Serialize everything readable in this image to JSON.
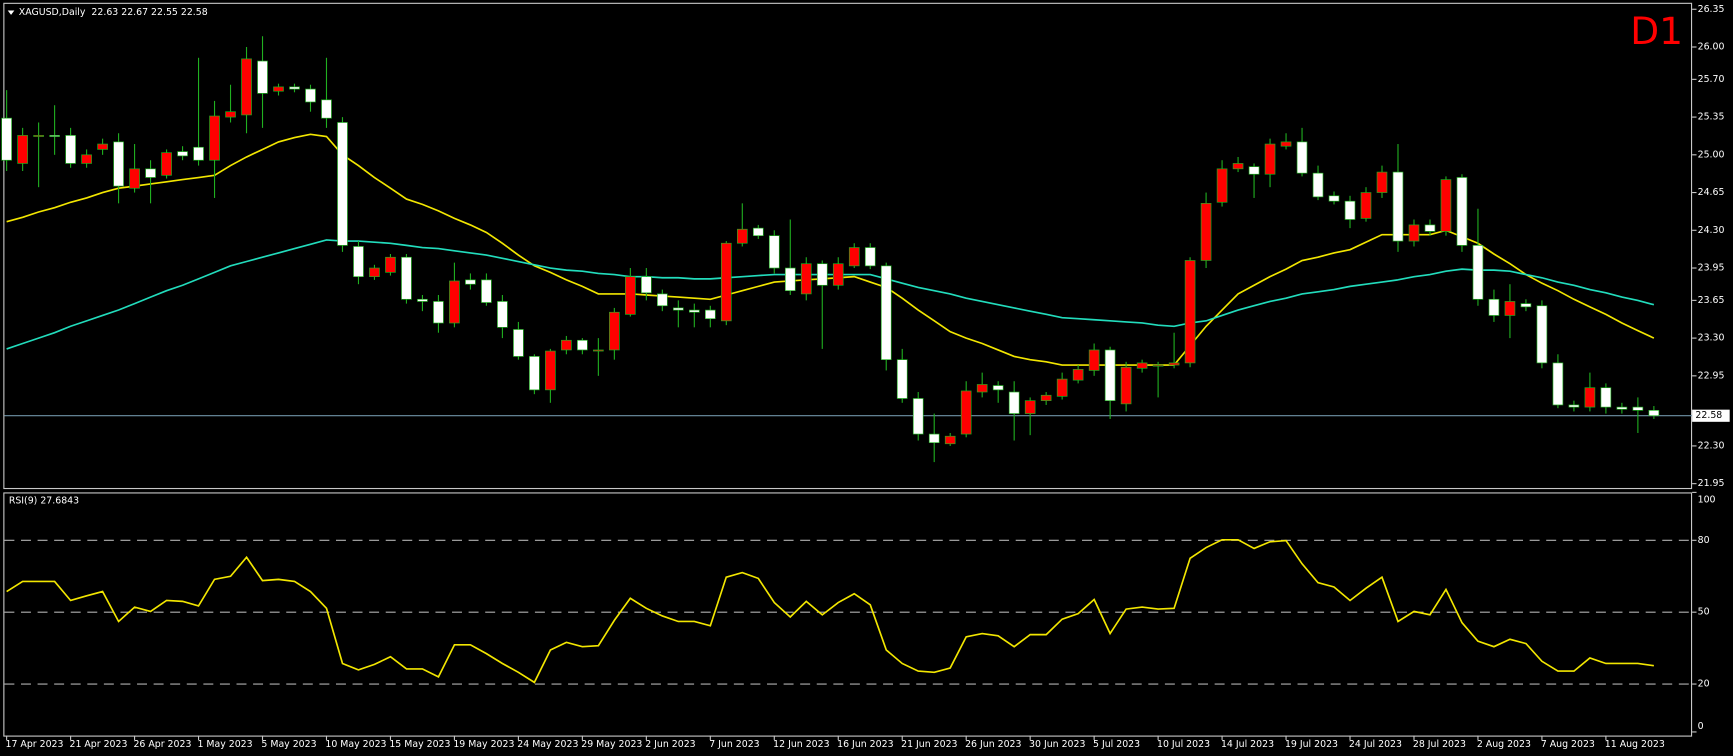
{
  "chart_data": [
    {
      "type": "candlestick",
      "title": "XAGUSD,Daily  22.63 22.67 22.55 22.58",
      "annotation": "D1",
      "up_color": "#ff0000",
      "down_color": "#ffffff",
      "wick_color": "#20b020",
      "ylim": [
        21.91,
        26.4
      ],
      "yticks": [
        {
          "value": 21.95,
          "label": "21.95"
        },
        {
          "value": 22.3,
          "label": "22.30"
        },
        22.95,
        {
          "value": 23.3,
          "label": "23.30"
        },
        23.65,
        23.95,
        {
          "value": 24.3,
          "label": "24.30"
        },
        24.65,
        {
          "value": 25.0,
          "label": "25.00"
        },
        25.35,
        {
          "value": 25.7,
          "label": "25.70"
        },
        {
          "value": 26.0,
          "label": "26.00"
        },
        26.35
      ],
      "price_line": 22.58,
      "price_line_color": "#6f93a6",
      "categories": [
        "17 Apr 2023",
        null,
        null,
        null,
        "21 Apr 2023",
        null,
        null,
        null,
        "26 Apr 2023",
        null,
        null,
        null,
        "1 May 2023",
        null,
        null,
        null,
        "5 May 2023",
        null,
        null,
        null,
        "10 May 2023",
        null,
        null,
        null,
        "15 May 2023",
        null,
        null,
        null,
        "19 May 2023",
        null,
        null,
        null,
        "24 May 2023",
        null,
        null,
        null,
        "29 May 2023",
        null,
        null,
        null,
        "2 Jun 2023",
        null,
        null,
        null,
        "7 Jun 2023",
        null,
        null,
        null,
        "12 Jun 2023",
        null,
        null,
        null,
        "16 Jun 2023",
        null,
        null,
        null,
        "21 Jun 2023",
        null,
        null,
        null,
        "26 Jun 2023",
        null,
        null,
        null,
        "30 Jun 2023",
        null,
        null,
        null,
        "5 Jul 2023",
        null,
        null,
        null,
        "10 Jul 2023",
        null,
        null,
        null,
        "14 Jul 2023",
        null,
        null,
        null,
        "19 Jul 2023",
        null,
        null,
        null,
        "24 Jul 2023",
        null,
        null,
        null,
        "28 Jul 2023",
        null,
        null,
        null,
        "2 Aug 2023",
        null,
        null,
        null,
        "7 Aug 2023",
        null,
        null,
        null,
        "11 Aug 2023",
        null,
        null,
        null
      ],
      "candles": [
        [
          25.34,
          25.6,
          24.85,
          24.95
        ],
        [
          24.92,
          25.25,
          24.85,
          25.18
        ],
        [
          25.18,
          25.3,
          24.7,
          25.18
        ],
        [
          25.18,
          25.46,
          25.0,
          25.17
        ],
        [
          25.18,
          25.25,
          24.88,
          24.92
        ],
        [
          24.92,
          25.05,
          24.88,
          25.0
        ],
        [
          25.05,
          25.15,
          25.0,
          25.1
        ],
        [
          25.12,
          25.2,
          24.55,
          24.71
        ],
        [
          24.69,
          25.1,
          24.65,
          24.87
        ],
        [
          24.87,
          24.95,
          24.55,
          24.79
        ],
        [
          24.81,
          25.05,
          24.78,
          25.02
        ],
        [
          25.03,
          25.08,
          24.95,
          24.99
        ],
        [
          25.07,
          25.9,
          24.9,
          24.95
        ],
        [
          24.95,
          25.5,
          24.6,
          25.36
        ],
        [
          25.35,
          25.65,
          25.3,
          25.4
        ],
        [
          25.37,
          26.0,
          25.2,
          25.89
        ],
        [
          25.87,
          26.1,
          25.25,
          25.57
        ],
        [
          25.59,
          25.66,
          25.55,
          25.63
        ],
        [
          25.63,
          25.66,
          25.58,
          25.61
        ],
        [
          25.61,
          25.65,
          25.4,
          25.49
        ],
        [
          25.51,
          25.9,
          25.25,
          25.34
        ],
        [
          25.3,
          25.35,
          24.1,
          24.16
        ],
        [
          24.15,
          24.2,
          23.8,
          23.87
        ],
        [
          23.87,
          23.98,
          23.84,
          23.95
        ],
        [
          23.91,
          24.08,
          23.88,
          24.05
        ],
        [
          24.05,
          24.08,
          23.62,
          23.66
        ],
        [
          23.66,
          23.7,
          23.55,
          23.64
        ],
        [
          23.64,
          23.7,
          23.35,
          23.44
        ],
        [
          23.44,
          24.0,
          23.4,
          23.83
        ],
        [
          23.84,
          23.9,
          23.75,
          23.8
        ],
        [
          23.84,
          23.9,
          23.6,
          23.63
        ],
        [
          23.64,
          23.7,
          23.3,
          23.4
        ],
        [
          23.38,
          23.45,
          23.1,
          23.13
        ],
        [
          23.13,
          23.15,
          22.78,
          22.82
        ],
        [
          22.82,
          23.2,
          22.7,
          23.18
        ],
        [
          23.19,
          23.32,
          23.15,
          23.28
        ],
        [
          23.28,
          23.3,
          23.15,
          23.19
        ],
        [
          23.18,
          23.3,
          22.95,
          23.19
        ],
        [
          23.19,
          23.58,
          23.1,
          23.54
        ],
        [
          23.52,
          23.95,
          23.5,
          23.87
        ],
        [
          23.87,
          23.95,
          23.65,
          23.72
        ],
        [
          23.71,
          23.75,
          23.55,
          23.6
        ],
        [
          23.58,
          23.65,
          23.4,
          23.56
        ],
        [
          23.56,
          23.62,
          23.4,
          23.54
        ],
        [
          23.56,
          23.6,
          23.4,
          23.48
        ],
        [
          23.46,
          24.2,
          23.42,
          24.18
        ],
        [
          24.18,
          24.55,
          24.15,
          24.31
        ],
        [
          24.32,
          24.35,
          24.22,
          24.25
        ],
        [
          24.25,
          24.3,
          23.9,
          23.95
        ],
        [
          23.95,
          24.4,
          23.7,
          23.74
        ],
        [
          23.71,
          24.05,
          23.65,
          23.99
        ],
        [
          23.99,
          24.02,
          23.2,
          23.79
        ],
        [
          23.79,
          24.05,
          23.75,
          23.99
        ],
        [
          23.97,
          24.18,
          23.95,
          24.14
        ],
        [
          24.14,
          24.18,
          23.94,
          23.97
        ],
        [
          23.97,
          24.0,
          23.0,
          23.1
        ],
        [
          23.1,
          23.2,
          22.7,
          22.74
        ],
        [
          22.74,
          22.8,
          22.35,
          22.41
        ],
        [
          22.41,
          22.6,
          22.15,
          22.33
        ],
        [
          22.32,
          22.42,
          22.3,
          22.39
        ],
        [
          22.41,
          22.9,
          22.38,
          22.81
        ],
        [
          22.8,
          22.98,
          22.75,
          22.87
        ],
        [
          22.86,
          22.9,
          22.7,
          22.82
        ],
        [
          22.8,
          22.9,
          22.35,
          22.6
        ],
        [
          22.6,
          22.75,
          22.4,
          22.72
        ],
        [
          22.72,
          22.8,
          22.68,
          22.77
        ],
        [
          22.76,
          22.98,
          22.73,
          22.92
        ],
        [
          22.91,
          23.05,
          22.88,
          23.01
        ],
        [
          23.0,
          23.25,
          22.95,
          23.19
        ],
        [
          23.19,
          23.22,
          22.55,
          22.72
        ],
        [
          22.69,
          23.08,
          22.62,
          23.03
        ],
        [
          23.02,
          23.1,
          22.98,
          23.07
        ],
        [
          23.05,
          23.08,
          22.75,
          23.05
        ],
        [
          23.05,
          23.35,
          23.02,
          23.07
        ],
        [
          23.07,
          24.05,
          23.03,
          24.02
        ],
        [
          24.02,
          24.65,
          23.95,
          24.55
        ],
        [
          24.56,
          24.95,
          24.52,
          24.87
        ],
        [
          24.87,
          24.98,
          24.84,
          24.92
        ],
        [
          24.89,
          24.92,
          24.6,
          24.82
        ],
        [
          24.82,
          25.15,
          24.7,
          25.1
        ],
        [
          25.08,
          25.2,
          25.05,
          25.12
        ],
        [
          25.12,
          25.25,
          24.8,
          24.83
        ],
        [
          24.83,
          24.9,
          24.58,
          24.61
        ],
        [
          24.62,
          24.66,
          24.54,
          24.57
        ],
        [
          24.57,
          24.62,
          24.32,
          24.4
        ],
        [
          24.41,
          24.7,
          24.38,
          24.65
        ],
        [
          24.65,
          24.9,
          24.6,
          24.84
        ],
        [
          24.84,
          25.1,
          24.1,
          24.2
        ],
        [
          24.2,
          24.4,
          24.15,
          24.35
        ],
        [
          24.35,
          24.4,
          24.25,
          24.29
        ],
        [
          24.29,
          24.8,
          24.25,
          24.77
        ],
        [
          24.79,
          24.82,
          24.1,
          24.16
        ],
        [
          24.16,
          24.5,
          23.6,
          23.66
        ],
        [
          23.66,
          23.75,
          23.45,
          23.51
        ],
        [
          23.51,
          23.8,
          23.3,
          23.64
        ],
        [
          23.62,
          23.66,
          23.55,
          23.59
        ],
        [
          23.6,
          23.65,
          23.02,
          23.07
        ],
        [
          23.07,
          23.15,
          22.65,
          22.68
        ],
        [
          22.68,
          22.72,
          22.62,
          22.66
        ],
        [
          22.66,
          22.98,
          22.62,
          22.84
        ],
        [
          22.84,
          22.88,
          22.6,
          22.66
        ],
        [
          22.66,
          22.7,
          22.6,
          22.64
        ],
        [
          22.66,
          22.75,
          22.42,
          22.63
        ],
        [
          22.63,
          22.67,
          22.55,
          22.58
        ]
      ],
      "ma": [
        {
          "color": "#f2e600",
          "values": [
            24.38,
            24.42,
            24.47,
            24.51,
            24.56,
            24.6,
            24.65,
            24.69,
            24.71,
            24.73,
            24.75,
            24.77,
            24.79,
            24.81,
            24.9,
            24.98,
            25.05,
            25.12,
            25.16,
            25.19,
            25.17,
            25.0,
            24.9,
            24.79,
            24.69,
            24.59,
            24.54,
            24.48,
            24.41,
            24.35,
            24.28,
            24.18,
            24.07,
            23.97,
            23.91,
            23.84,
            23.78,
            23.71,
            23.71,
            23.71,
            23.7,
            23.69,
            23.68,
            23.67,
            23.66,
            23.7,
            23.74,
            23.78,
            23.82,
            23.83,
            23.84,
            23.85,
            23.86,
            23.87,
            23.82,
            23.77,
            23.67,
            23.56,
            23.46,
            23.36,
            23.3,
            23.25,
            23.19,
            23.13,
            23.1,
            23.08,
            23.05,
            23.05,
            23.05,
            23.05,
            23.05,
            23.05,
            23.05,
            23.05,
            23.23,
            23.41,
            23.56,
            23.71,
            23.79,
            23.87,
            23.94,
            24.02,
            24.05,
            24.09,
            24.12,
            24.19,
            24.26,
            24.26,
            24.26,
            24.26,
            24.3,
            24.24,
            24.18,
            24.08,
            23.99,
            23.89,
            23.81,
            23.74,
            23.66,
            23.59,
            23.52,
            23.44,
            23.37,
            23.3
          ]
        },
        {
          "color": "#22dcbc",
          "values": [
            23.2,
            23.25,
            23.3,
            23.35,
            23.41,
            23.46,
            23.51,
            23.56,
            23.62,
            23.68,
            23.74,
            23.79,
            23.85,
            23.91,
            23.97,
            24.01,
            24.05,
            24.09,
            24.13,
            24.17,
            24.21,
            24.2,
            24.2,
            24.19,
            24.18,
            24.16,
            24.14,
            24.13,
            24.11,
            24.09,
            24.07,
            24.04,
            24.01,
            23.98,
            23.95,
            23.93,
            23.92,
            23.9,
            23.89,
            23.87,
            23.87,
            23.86,
            23.86,
            23.85,
            23.85,
            23.86,
            23.87,
            23.88,
            23.89,
            23.89,
            23.89,
            23.89,
            23.89,
            23.89,
            23.89,
            23.85,
            23.81,
            23.77,
            23.74,
            23.71,
            23.67,
            23.64,
            23.61,
            23.58,
            23.55,
            23.52,
            23.49,
            23.48,
            23.47,
            23.46,
            23.45,
            23.44,
            23.42,
            23.41,
            23.44,
            23.46,
            23.51,
            23.56,
            23.6,
            23.64,
            23.67,
            23.71,
            23.73,
            23.75,
            23.78,
            23.8,
            23.82,
            23.84,
            23.87,
            23.89,
            23.92,
            23.94,
            23.93,
            23.93,
            23.92,
            23.89,
            23.86,
            23.82,
            23.79,
            23.75,
            23.72,
            23.68,
            23.65,
            23.61
          ]
        }
      ]
    },
    {
      "type": "line",
      "title": "RSI(9) 27.6843",
      "color": "#f2e600",
      "ylim": [
        -1.5,
        100
      ],
      "yticks": [
        0,
        20,
        50,
        80,
        100
      ],
      "levels": [
        20,
        50,
        80
      ],
      "values": [
        58.6,
        62.8,
        62.8,
        62.8,
        54.9,
        56.8,
        58.6,
        46.1,
        52.1,
        50.3,
        54.9,
        54.5,
        52.6,
        63.7,
        65.0,
        72.9,
        63.2,
        63.7,
        62.8,
        58.6,
        51.6,
        28.6,
        25.9,
        28.2,
        31.4,
        26.3,
        26.3,
        23.0,
        36.4,
        36.4,
        32.7,
        28.6,
        24.9,
        20.7,
        34.2,
        37.4,
        35.6,
        36.0,
        46.6,
        55.8,
        51.6,
        48.4,
        46.1,
        46.1,
        44.3,
        64.6,
        66.5,
        64.1,
        54.0,
        48.0,
        54.5,
        48.9,
        54.0,
        57.7,
        53.1,
        34.2,
        28.6,
        25.4,
        24.9,
        26.7,
        39.7,
        41.1,
        40.1,
        35.6,
        40.6,
        40.6,
        47.1,
        49.4,
        55.3,
        41.1,
        51.3,
        52.1,
        51.3,
        51.6,
        72.5,
        77.0,
        80.2,
        80.2,
        76.6,
        79.4,
        79.9,
        70.2,
        62.3,
        60.5,
        54.9,
        60.0,
        64.6,
        46.1,
        50.3,
        48.9,
        59.5,
        45.6,
        37.9,
        35.6,
        38.7,
        36.9,
        29.5,
        25.4,
        25.4,
        30.9,
        28.6,
        28.6,
        28.6,
        27.68
      ]
    }
  ]
}
